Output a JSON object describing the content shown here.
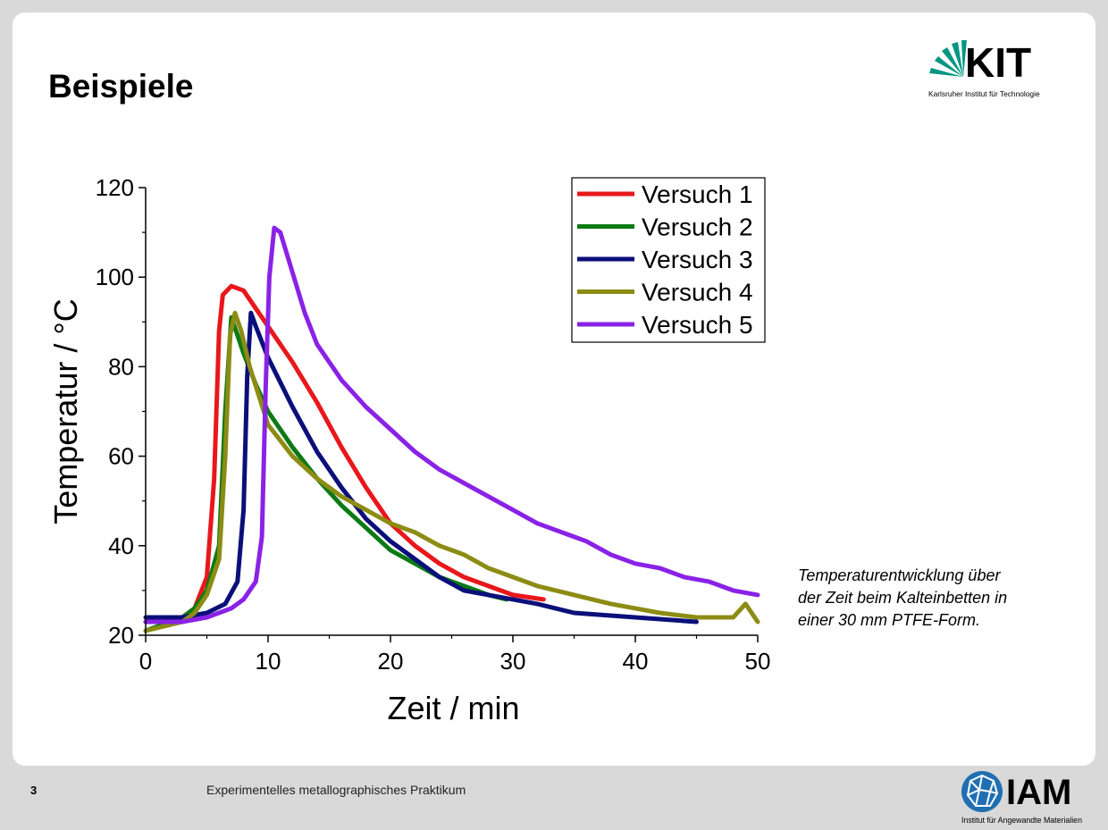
{
  "slide": {
    "title": "Beispiele"
  },
  "kit_logo": {
    "text": "KIT",
    "subtitle": "Karlsruher Institut für Technologie",
    "color": "#009682"
  },
  "caption": [
    "Temperaturentwicklung über",
    "der Zeit beim Kalteinbetten in",
    "einer 30 mm PTFE-Form."
  ],
  "footer": {
    "page_number": "3",
    "text": "Experimentelles metallographisches Praktikum"
  },
  "iam_logo": {
    "text": "IAM",
    "subtitle": "Institut für Angewandte Materialien",
    "color": "#1f6fb2"
  },
  "chart_data": {
    "type": "line",
    "title": "",
    "xlabel": "Zeit / min",
    "ylabel": "Temperatur / °C",
    "xlim": [
      0,
      50
    ],
    "ylim": [
      20,
      120
    ],
    "xticks": [
      0,
      10,
      20,
      30,
      40,
      50
    ],
    "yticks": [
      20,
      40,
      60,
      80,
      100,
      120
    ],
    "grid": false,
    "legend": "top-right",
    "series": [
      {
        "name": "Versuch 1",
        "color": "#e8171b",
        "points": [
          [
            0,
            23
          ],
          [
            3,
            24
          ],
          [
            4,
            26
          ],
          [
            5,
            33
          ],
          [
            5.6,
            55
          ],
          [
            6,
            88
          ],
          [
            6.3,
            96
          ],
          [
            7,
            98
          ],
          [
            8,
            97
          ],
          [
            9,
            93
          ],
          [
            10,
            89
          ],
          [
            12,
            81
          ],
          [
            14,
            72
          ],
          [
            16,
            62
          ],
          [
            18,
            53
          ],
          [
            20,
            45
          ],
          [
            22,
            40
          ],
          [
            24,
            36
          ],
          [
            26,
            33
          ],
          [
            28,
            31
          ],
          [
            30,
            29
          ],
          [
            32.5,
            28
          ]
        ]
      },
      {
        "name": "Versuch 2",
        "color": "#0c7a14",
        "points": [
          [
            0,
            21
          ],
          [
            3,
            24
          ],
          [
            4,
            26
          ],
          [
            5,
            30
          ],
          [
            6,
            40
          ],
          [
            6.5,
            70
          ],
          [
            7,
            91
          ],
          [
            7.5,
            87
          ],
          [
            8,
            83
          ],
          [
            9,
            76
          ],
          [
            10,
            70
          ],
          [
            12,
            62
          ],
          [
            14,
            55
          ],
          [
            16,
            49
          ],
          [
            18,
            44
          ],
          [
            20,
            39
          ],
          [
            22,
            36
          ],
          [
            24,
            33
          ],
          [
            26,
            31
          ],
          [
            28,
            29
          ],
          [
            29.5,
            28
          ]
        ]
      },
      {
        "name": "Versuch 3",
        "color": "#0b0f7a",
        "points": [
          [
            0,
            24
          ],
          [
            3,
            24
          ],
          [
            5,
            25
          ],
          [
            6.5,
            27
          ],
          [
            7.5,
            32
          ],
          [
            8,
            48
          ],
          [
            8.3,
            78
          ],
          [
            8.6,
            92
          ],
          [
            9,
            89
          ],
          [
            10,
            82
          ],
          [
            12,
            71
          ],
          [
            14,
            61
          ],
          [
            16,
            53
          ],
          [
            18,
            46
          ],
          [
            20,
            41
          ],
          [
            22,
            37
          ],
          [
            24,
            33
          ],
          [
            26,
            30
          ],
          [
            28,
            29
          ],
          [
            30,
            28
          ],
          [
            32,
            27
          ],
          [
            35,
            25
          ],
          [
            40,
            24
          ],
          [
            45,
            23
          ]
        ]
      },
      {
        "name": "Versuch 4",
        "color": "#8c8c14",
        "points": [
          [
            0,
            21
          ],
          [
            3,
            23
          ],
          [
            4,
            25
          ],
          [
            5,
            29
          ],
          [
            6,
            37
          ],
          [
            6.5,
            60
          ],
          [
            6.9,
            87
          ],
          [
            7.3,
            92
          ],
          [
            7.8,
            88
          ],
          [
            8.5,
            80
          ],
          [
            10,
            67
          ],
          [
            12,
            60
          ],
          [
            14,
            55
          ],
          [
            16,
            51
          ],
          [
            18,
            48
          ],
          [
            20,
            45
          ],
          [
            22,
            43
          ],
          [
            24,
            40
          ],
          [
            26,
            38
          ],
          [
            28,
            35
          ],
          [
            30,
            33
          ],
          [
            32,
            31
          ],
          [
            35,
            29
          ],
          [
            38,
            27
          ],
          [
            40,
            26
          ],
          [
            42,
            25
          ],
          [
            45,
            24
          ],
          [
            48,
            24
          ],
          [
            49,
            27
          ],
          [
            50,
            23
          ]
        ]
      },
      {
        "name": "Versuch 5",
        "color": "#8a22e6",
        "points": [
          [
            0,
            23
          ],
          [
            3,
            23
          ],
          [
            5,
            24
          ],
          [
            7,
            26
          ],
          [
            8,
            28
          ],
          [
            9,
            32
          ],
          [
            9.5,
            42
          ],
          [
            9.8,
            75
          ],
          [
            10.1,
            100
          ],
          [
            10.5,
            111
          ],
          [
            11,
            110
          ],
          [
            12,
            101
          ],
          [
            13,
            92
          ],
          [
            14,
            85
          ],
          [
            16,
            77
          ],
          [
            18,
            71
          ],
          [
            20,
            66
          ],
          [
            22,
            61
          ],
          [
            24,
            57
          ],
          [
            26,
            54
          ],
          [
            28,
            51
          ],
          [
            30,
            48
          ],
          [
            32,
            45
          ],
          [
            34,
            43
          ],
          [
            36,
            41
          ],
          [
            38,
            38
          ],
          [
            40,
            36
          ],
          [
            42,
            35
          ],
          [
            44,
            33
          ],
          [
            46,
            32
          ],
          [
            48,
            30
          ],
          [
            50,
            29
          ]
        ]
      }
    ]
  }
}
